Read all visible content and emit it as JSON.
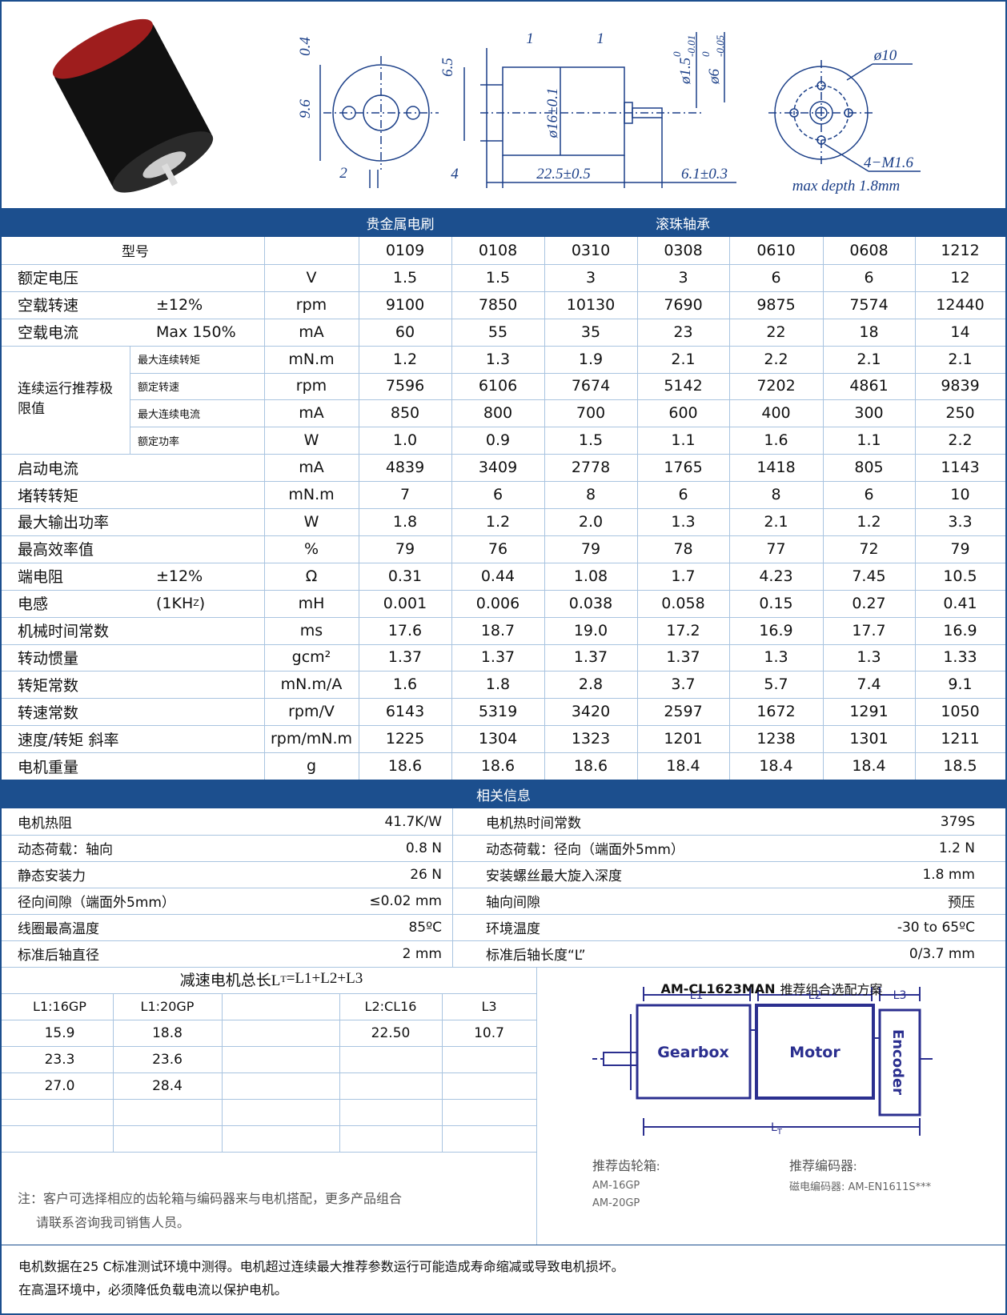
{
  "drawing": {
    "front": [
      "0.4",
      "9.6",
      "2"
    ],
    "side": [
      "6.5",
      "1",
      "1",
      "4",
      "22.5±0.5",
      "6.1±0.3",
      "ø16±0.1"
    ],
    "shaft": [
      {
        "d": "ø1.5",
        "upper": "0",
        "lower": "-0.01"
      },
      {
        "d": "ø6",
        "upper": "0",
        "lower": "-0.05"
      }
    ],
    "rear": [
      "ø10",
      "4−M1.6",
      "max depth 1.8mm"
    ]
  },
  "header": {
    "band": [
      "贵金属电刷",
      "滚珠轴承"
    ]
  },
  "spec_table": {
    "model_label": "型号",
    "models": [
      "0109",
      "0108",
      "0310",
      "0308",
      "0610",
      "0608",
      "1212"
    ],
    "group_label": "连续运行推荐极限值",
    "rows": [
      {
        "label": "额定电压",
        "unit": "V",
        "values": [
          "1.5",
          "1.5",
          "3",
          "3",
          "6",
          "6",
          "12"
        ]
      },
      {
        "label": "空载转速",
        "note": "±12%",
        "unit": "rpm",
        "values": [
          "9100",
          "7850",
          "10130",
          "7690",
          "9875",
          "7574",
          "12440"
        ]
      },
      {
        "label": "空载电流",
        "note": "Max 150%",
        "unit": "mA",
        "values": [
          "60",
          "55",
          "35",
          "23",
          "22",
          "18",
          "14"
        ]
      },
      {
        "sublabel": "最大连续转矩",
        "unit": "mN.m",
        "values": [
          "1.2",
          "1.3",
          "1.9",
          "2.1",
          "2.2",
          "2.1",
          "2.1"
        ]
      },
      {
        "sublabel": "额定转速",
        "unit": "rpm",
        "values": [
          "7596",
          "6106",
          "7674",
          "5142",
          "7202",
          "4861",
          "9839"
        ]
      },
      {
        "sublabel": "最大连续电流",
        "unit": "mA",
        "values": [
          "850",
          "800",
          "700",
          "600",
          "400",
          "300",
          "250"
        ]
      },
      {
        "sublabel": "额定功率",
        "unit": "W",
        "values": [
          "1.0",
          "0.9",
          "1.5",
          "1.1",
          "1.6",
          "1.1",
          "2.2"
        ]
      },
      {
        "label": "启动电流",
        "unit": "mA",
        "values": [
          "4839",
          "3409",
          "2778",
          "1765",
          "1418",
          "805",
          "1143"
        ]
      },
      {
        "label": "堵转转矩",
        "unit": "mN.m",
        "values": [
          "7",
          "6",
          "8",
          "6",
          "8",
          "6",
          "10"
        ]
      },
      {
        "label": "最大输出功率",
        "unit": "W",
        "values": [
          "1.8",
          "1.2",
          "2.0",
          "1.3",
          "2.1",
          "1.2",
          "3.3"
        ]
      },
      {
        "label": "最高效率值",
        "unit": "%",
        "values": [
          "79",
          "76",
          "79",
          "78",
          "77",
          "72",
          "79"
        ]
      },
      {
        "label": "端电阻",
        "note": "±12%",
        "unit": "Ω",
        "values": [
          "0.31",
          "0.44",
          "1.08",
          "1.7",
          "4.23",
          "7.45",
          "10.5"
        ]
      },
      {
        "label": "电感",
        "note": "(1KH",
        "note_sub": "Z",
        "note_end": ")",
        "unit": "mH",
        "values": [
          "0.001",
          "0.006",
          "0.038",
          "0.058",
          "0.15",
          "0.27",
          "0.41"
        ]
      },
      {
        "label": "机械时间常数",
        "unit": "ms",
        "values": [
          "17.6",
          "18.7",
          "19.0",
          "17.2",
          "16.9",
          "17.7",
          "16.9"
        ]
      },
      {
        "label": "转动惯量",
        "unit": "gcm²",
        "values": [
          "1.37",
          "1.37",
          "1.37",
          "1.37",
          "1.3",
          "1.3",
          "1.33"
        ]
      },
      {
        "label": "转矩常数",
        "unit": "mN.m/A",
        "values": [
          "1.6",
          "1.8",
          "2.8",
          "3.7",
          "5.7",
          "7.4",
          "9.1"
        ]
      },
      {
        "label": "转速常数",
        "unit": "rpm/V",
        "values": [
          "6143",
          "5319",
          "3420",
          "2597",
          "1672",
          "1291",
          "1050"
        ]
      },
      {
        "label": "速度/转矩 斜率",
        "unit": "rpm/mN.m",
        "values": [
          "1225",
          "1304",
          "1323",
          "1201",
          "1238",
          "1301",
          "1211"
        ]
      },
      {
        "label": "电机重量",
        "unit": "g",
        "values": [
          "18.6",
          "18.6",
          "18.6",
          "18.4",
          "18.4",
          "18.4",
          "18.5"
        ]
      }
    ]
  },
  "info": {
    "title": "相关信息",
    "rows": [
      [
        "电机热阻",
        "41.7K/W",
        "电机热时间常数",
        "379S"
      ],
      [
        "动态荷载：轴向",
        "0.8 N",
        "动态荷载：径向（端面外5mm）",
        "1.2 N"
      ],
      [
        "静态安装力",
        "26 N",
        "安装螺丝最大旋入深度",
        "1.8 mm"
      ],
      [
        "径向间隙（端面外5mm）",
        "≤0.02 mm",
        "轴向间隙",
        "预压"
      ],
      [
        "线圈最高温度",
        "85ºC",
        "环境温度",
        "-30 to 65ºC"
      ],
      [
        "标准后轴直径",
        "2 mm",
        "标准后轴长度“L”",
        "0/3.7 mm"
      ]
    ]
  },
  "gear_table": {
    "title": {
      "text": "减速电机总长L",
      "sub": "T",
      "tail": "=L1+L2+L3"
    },
    "headers": [
      "L1:16GP",
      "L1:20GP",
      null,
      "L2:CL16",
      "L3"
    ],
    "rows": [
      [
        "15.9",
        "18.8",
        null,
        "22.50",
        "10.7"
      ],
      [
        "23.3",
        "23.6",
        null,
        null,
        null
      ],
      [
        "27.0",
        "28.4",
        null,
        null,
        null
      ]
    ],
    "note": [
      "注：客户可选择相应的齿轮箱与编码器来与电机搭配，更多产品组合",
      "请联系咨询我司销售人员。"
    ]
  },
  "combo": {
    "title_bold": "AM-CL1623MAN",
    "title": "推荐组合选配方案",
    "l1": "L1",
    "l2": "L2",
    "l3": "L3",
    "lt": "L",
    "lt_sub": "T",
    "gearbox": "Gearbox",
    "motor": "Motor",
    "encoder": "Encoder",
    "gearbox_rec": {
      "title": "推荐齿轮箱:",
      "items": [
        "AM-16GP",
        "AM-20GP"
      ]
    },
    "encoder_rec": {
      "title": "推荐编码器:",
      "items": [
        "磁电编码器: AM-EN1611S***"
      ]
    }
  },
  "footer": [
    "电机数据在25 C标准测试环境中测得。电机超过连续最大推荐参数运行可能造成寿命缩减或导致电机损坏。",
    "在高温环境中，必须降低负载电流以保护电机。"
  ]
}
